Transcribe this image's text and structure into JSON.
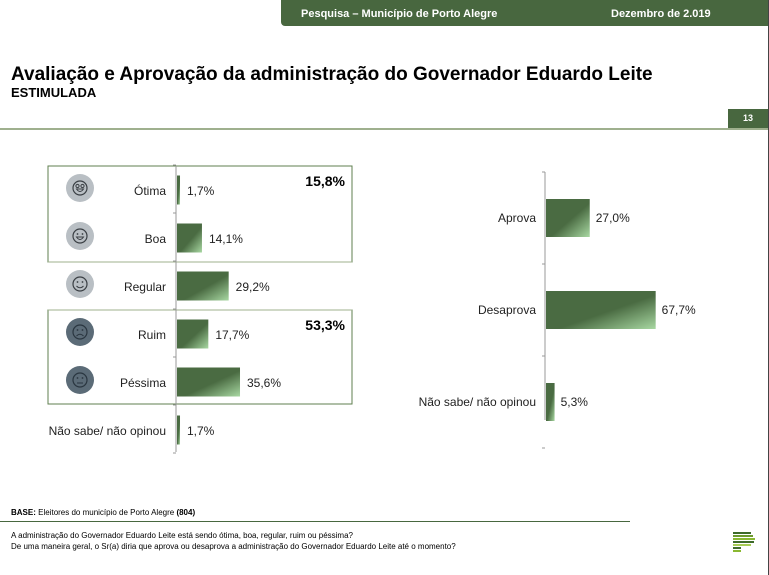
{
  "header": {
    "survey": "Pesquisa – Município de Porto Alegre",
    "date": "Dezembro de 2.019"
  },
  "title": "Avaliação e Aprovação da administração do Governador Eduardo Leite",
  "subtitle": "ESTIMULADA",
  "page_number": "13",
  "colors": {
    "brand": "#48673f",
    "bar": "#4a6b42",
    "bar_light": "#9fcf9a",
    "icon_light": "#b9bfc4",
    "icon_dark": "#5b6b77"
  },
  "chart_data": [
    {
      "type": "bar",
      "orientation": "horizontal",
      "title": "Avaliação",
      "categories": [
        "Ótima",
        "Boa",
        "Regular",
        "Ruim",
        "Péssima",
        "Não sabe/ não opinou"
      ],
      "values": [
        1.7,
        14.1,
        29.2,
        17.7,
        35.6,
        1.7
      ],
      "labels": [
        "1,7%",
        "14,1%",
        "29,2%",
        "17,7%",
        "35,6%",
        "1,7%"
      ],
      "icons": [
        "star-eyes-face-icon",
        "grin-face-icon",
        "smile-face-icon",
        "frown-face-icon",
        "neutral-face-icon",
        ""
      ],
      "groups": [
        {
          "name": "Ótima + Boa",
          "total": "15,8%"
        },
        {
          "name": "Ruim + Péssima",
          "total": "53,3%"
        }
      ],
      "xlim": [
        0,
        100
      ]
    },
    {
      "type": "bar",
      "orientation": "horizontal",
      "title": "Aprovação",
      "categories": [
        "Aprova",
        "Desaprova",
        "Não sabe/ não opinou"
      ],
      "values": [
        27.0,
        67.7,
        5.3
      ],
      "labels": [
        "27,0%",
        "67,7%",
        "5,3%"
      ],
      "xlim": [
        0,
        100
      ]
    }
  ],
  "footer": {
    "base_label": "BASE:",
    "base_text": "Eleitores do município de Porto Alegre",
    "base_n": "(804)",
    "question1": "A administração do Governador Eduardo Leite está sendo ótima, boa, regular, ruim ou péssima?",
    "question2": "De uma maneira geral, o Sr(a) diria que aprova ou desaprova a administração do Governador Eduardo Leite até o momento?"
  }
}
